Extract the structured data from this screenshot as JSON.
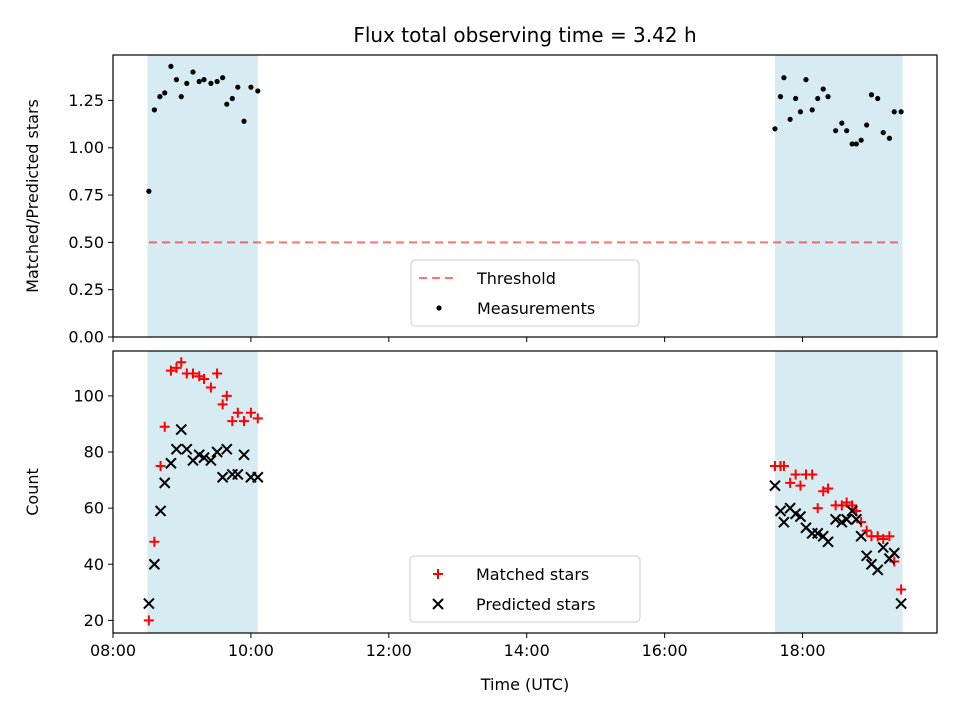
{
  "title": "Flux total observing time = 3.42 h",
  "xlabel": "Time (UTC)",
  "x_tick_labels": [
    "08:00",
    "10:00",
    "12:00",
    "14:00",
    "16:00",
    "18:00"
  ],
  "colors": {
    "span": "#add8e6",
    "threshold": "#ff0000",
    "measurement": "#000000",
    "matched": "#ff0000",
    "predicted": "#000000"
  },
  "chart_data": [
    {
      "type": "scatter",
      "ylabel": "Matched/Predicted stars",
      "xlim": [
        8.0,
        19.95
      ],
      "ylim": [
        0.0,
        1.49
      ],
      "y_ticks": [
        "0.00",
        "0.25",
        "0.50",
        "0.75",
        "1.00",
        "1.25"
      ],
      "shaded_spans": [
        [
          8.5,
          10.1
        ],
        [
          17.6,
          19.45
        ]
      ],
      "threshold": 0.5,
      "legend": [
        "Threshold",
        "Measurements"
      ],
      "legend_position": "lower center",
      "series": [
        {
          "name": "Measurements",
          "x": [
            8.52,
            8.6,
            8.68,
            8.75,
            8.84,
            8.92,
            8.99,
            9.07,
            9.16,
            9.25,
            9.32,
            9.42,
            9.51,
            9.59,
            9.65,
            9.73,
            9.81,
            9.9,
            10.0,
            10.1,
            17.6,
            17.68,
            17.73,
            17.82,
            17.9,
            17.97,
            18.05,
            18.14,
            18.22,
            18.3,
            18.37,
            18.48,
            18.57,
            18.64,
            18.72,
            18.78,
            18.85,
            18.93,
            19.0,
            19.09,
            19.17,
            19.26,
            19.33,
            19.43
          ],
          "y": [
            0.77,
            1.2,
            1.27,
            1.29,
            1.43,
            1.36,
            1.27,
            1.34,
            1.4,
            1.35,
            1.36,
            1.34,
            1.35,
            1.37,
            1.23,
            1.26,
            1.32,
            1.14,
            1.32,
            1.3,
            1.1,
            1.27,
            1.37,
            1.15,
            1.26,
            1.19,
            1.36,
            1.2,
            1.26,
            1.31,
            1.27,
            1.09,
            1.13,
            1.09,
            1.02,
            1.02,
            1.04,
            1.12,
            1.28,
            1.26,
            1.08,
            1.05,
            1.19,
            1.19
          ]
        }
      ]
    },
    {
      "type": "scatter",
      "ylabel": "Count",
      "xlim": [
        8.0,
        19.95
      ],
      "ylim": [
        15.5,
        116
      ],
      "y_ticks": [
        "20",
        "40",
        "60",
        "80",
        "100"
      ],
      "shaded_spans": [
        [
          8.5,
          10.1
        ],
        [
          17.6,
          19.45
        ]
      ],
      "legend": [
        "Matched stars",
        "Predicted stars"
      ],
      "legend_position": "lower center",
      "series": [
        {
          "name": "Matched stars",
          "marker": "plus",
          "x": [
            8.52,
            8.6,
            8.69,
            8.75,
            8.84,
            8.92,
            8.99,
            9.07,
            9.16,
            9.25,
            9.32,
            9.42,
            9.51,
            9.59,
            9.65,
            9.73,
            9.81,
            9.9,
            10.0,
            10.1,
            17.6,
            17.68,
            17.73,
            17.82,
            17.9,
            17.97,
            18.05,
            18.14,
            18.22,
            18.3,
            18.37,
            18.48,
            18.57,
            18.64,
            18.72,
            18.78,
            18.85,
            18.93,
            19.0,
            19.09,
            19.17,
            19.26,
            19.33,
            19.43
          ],
          "y": [
            20,
            48,
            75,
            89,
            109,
            110,
            112,
            108,
            108,
            107,
            106,
            103,
            108,
            97,
            100,
            91,
            94,
            91,
            94,
            92,
            75,
            75,
            75,
            69,
            72,
            68,
            72,
            72,
            60,
            66,
            67,
            61,
            61,
            62,
            61,
            59,
            55,
            52,
            50,
            50,
            49,
            50,
            41,
            31
          ]
        },
        {
          "name": "Predicted stars",
          "marker": "x",
          "x": [
            8.52,
            8.6,
            8.69,
            8.75,
            8.84,
            8.92,
            8.99,
            9.07,
            9.16,
            9.25,
            9.32,
            9.42,
            9.51,
            9.59,
            9.65,
            9.73,
            9.81,
            9.9,
            10.0,
            10.1,
            17.6,
            17.68,
            17.73,
            17.82,
            17.9,
            17.97,
            18.05,
            18.14,
            18.22,
            18.3,
            18.37,
            18.48,
            18.57,
            18.64,
            18.72,
            18.78,
            18.85,
            18.93,
            19.0,
            19.09,
            19.17,
            19.26,
            19.33,
            19.43
          ],
          "y": [
            26,
            40,
            59,
            69,
            76,
            81,
            88,
            81,
            77,
            79,
            78,
            77,
            80,
            71,
            81,
            72,
            72,
            79,
            71,
            71,
            68,
            59,
            55,
            60,
            58,
            57,
            53,
            51,
            51,
            50,
            48,
            56,
            55,
            56,
            59,
            56,
            50,
            43,
            40,
            38,
            46,
            42,
            44,
            26
          ]
        }
      ]
    }
  ]
}
